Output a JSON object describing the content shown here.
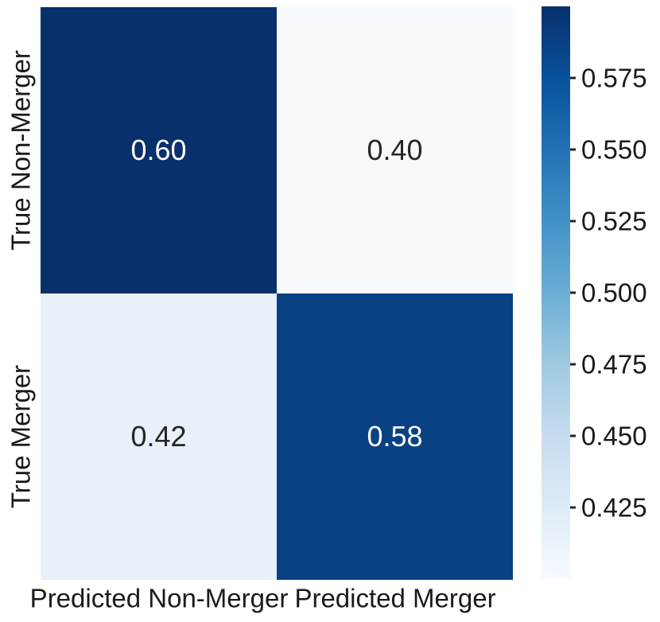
{
  "chart_data": {
    "type": "heatmap",
    "title": "",
    "xlabel": "",
    "ylabel": "",
    "x_tick_labels": [
      "Predicted Non-Merger",
      "Predicted Merger"
    ],
    "y_tick_labels": [
      "True Non-Merger",
      "True Merger"
    ],
    "matrix": [
      [
        0.6,
        0.4
      ],
      [
        0.42,
        0.58
      ]
    ],
    "cell_labels": [
      [
        "0.60",
        "0.40"
      ],
      [
        "0.42",
        "0.58"
      ]
    ],
    "cell_colors": [
      [
        "#08306b",
        "#f6fafd"
      ],
      [
        "#e8f0fa",
        "#094183"
      ]
    ],
    "cell_text_colors": [
      [
        "#ffffff",
        "#262626"
      ],
      [
        "#262626",
        "#ffffff"
      ]
    ],
    "colormap": "Blues",
    "legend_position": "right-colorbar",
    "grid": false,
    "colorbar": {
      "vmin": 0.4,
      "vmax": 0.6,
      "tick_values": [
        0.575,
        0.55,
        0.525,
        0.5,
        0.475,
        0.45,
        0.425
      ],
      "tick_labels": [
        "0.575",
        "0.550",
        "0.525",
        "0.500",
        "0.475",
        "0.450",
        "0.425"
      ],
      "gradient_stops_bottom_to_top": [
        "#f7fbff",
        "#deebf7",
        "#c6dbef",
        "#9ecae1",
        "#6baed6",
        "#4292c6",
        "#2171b5",
        "#08519c",
        "#08306b"
      ]
    },
    "text_color": "#1a1a1a"
  }
}
